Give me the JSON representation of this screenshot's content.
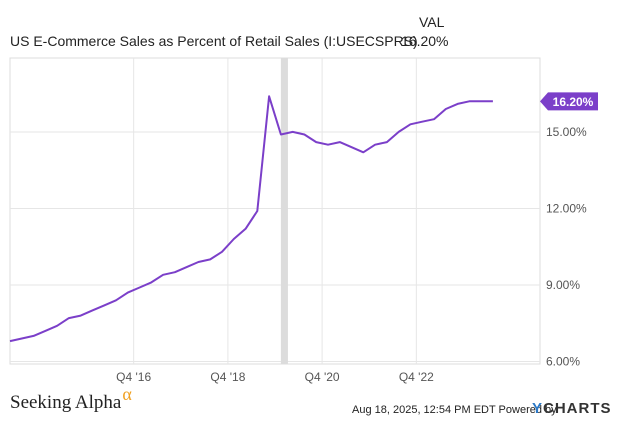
{
  "legend": {
    "series_name": "US E-Commerce Sales as Percent of Retail Sales (I:USECSPRS)",
    "column_header": "VAL",
    "value": "16.20%"
  },
  "colors": {
    "line": "#7b3fc9",
    "grid": "#e6e6e6",
    "recession": "#dcdcdc"
  },
  "chart_data": {
    "type": "line",
    "title": "US E-Commerce Sales as Percent of Retail Sales (I:USECSPRS)",
    "xlabel": "",
    "ylabel": "",
    "ylim": [
      5.9,
      17.9
    ],
    "xlim": [
      2014.25,
      2025.5
    ],
    "grid": true,
    "x_ticks": [
      {
        "x": 2016.875,
        "label": "Q4 '16"
      },
      {
        "x": 2018.875,
        "label": "Q4 '18"
      },
      {
        "x": 2020.875,
        "label": "Q4 '20"
      },
      {
        "x": 2022.875,
        "label": "Q4 '22"
      }
    ],
    "y_ticks": [
      {
        "y": 6,
        "label": "6.00%"
      },
      {
        "y": 9,
        "label": "9.00%"
      },
      {
        "y": 12,
        "label": "12.00%"
      },
      {
        "y": 15,
        "label": "15.00%"
      }
    ],
    "recession_band": [
      2020.0,
      2020.15
    ],
    "end_label": "16.20%",
    "series": [
      {
        "name": "US E-Commerce Sales as Percent of Retail Sales",
        "points": [
          [
            2014.25,
            6.8
          ],
          [
            2014.5,
            6.9
          ],
          [
            2014.75,
            7.0
          ],
          [
            2015.0,
            7.2
          ],
          [
            2015.25,
            7.4
          ],
          [
            2015.5,
            7.7
          ],
          [
            2015.75,
            7.8
          ],
          [
            2016.0,
            8.0
          ],
          [
            2016.25,
            8.2
          ],
          [
            2016.5,
            8.4
          ],
          [
            2016.75,
            8.7
          ],
          [
            2017.0,
            8.9
          ],
          [
            2017.25,
            9.1
          ],
          [
            2017.5,
            9.4
          ],
          [
            2017.75,
            9.5
          ],
          [
            2018.0,
            9.7
          ],
          [
            2018.25,
            9.9
          ],
          [
            2018.5,
            10.0
          ],
          [
            2018.75,
            10.3
          ],
          [
            2019.0,
            10.8
          ],
          [
            2019.25,
            11.2
          ],
          [
            2019.5,
            11.9
          ],
          [
            2019.75,
            16.4
          ],
          [
            2020.0,
            14.9
          ],
          [
            2020.25,
            15.0
          ],
          [
            2020.5,
            14.9
          ],
          [
            2020.75,
            14.6
          ],
          [
            2021.0,
            14.5
          ],
          [
            2021.25,
            14.6
          ],
          [
            2021.5,
            14.4
          ],
          [
            2021.75,
            14.2
          ],
          [
            2022.0,
            14.5
          ],
          [
            2022.25,
            14.6
          ],
          [
            2022.5,
            15.0
          ],
          [
            2022.75,
            15.3
          ],
          [
            2023.0,
            15.4
          ],
          [
            2023.25,
            15.5
          ],
          [
            2023.5,
            15.9
          ],
          [
            2023.75,
            16.1
          ],
          [
            2024.0,
            16.2
          ],
          [
            2024.25,
            16.2
          ],
          [
            2024.5,
            16.2
          ]
        ]
      }
    ]
  },
  "branding": {
    "left_logo": "Seeking Alpha",
    "left_logo_alpha": "α",
    "footer": "Aug 18, 2025, 12:54 PM EDT Powered by",
    "right_logo_y": "Y",
    "right_logo_rest": "CHARTS"
  }
}
